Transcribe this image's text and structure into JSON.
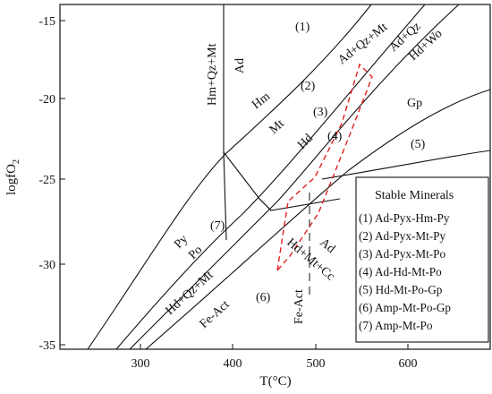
{
  "axes": {
    "x_ticks": [
      "300",
      "400",
      "500",
      "600"
    ],
    "y_ticks": [
      "-15",
      "-20",
      "-25",
      "-30",
      "-35"
    ],
    "xlabel": "T(°C)",
    "ylabel": {
      "base": "logfO",
      "subscript": "2"
    }
  },
  "field_labels": {
    "hm_qz_mt": "Hm+Qz+Mt",
    "ad_top": "Ad",
    "hm": "Hm",
    "mt": "Mt",
    "hd": "Hd",
    "ad_qz_mt": "Ad+Qz+Mt",
    "ad_qz": "Ad+Qz",
    "hd_wo": "Hd+Wo",
    "gp": "Gp",
    "py": "Py",
    "po": "Po",
    "hd_qz_mt": "Hd+Qz+Mt",
    "fe_act_left": "Fe-Act",
    "fe_act_mid": "Fe-Act",
    "ad_low": "Ad",
    "hd_mt_cc": "Hd+Mt+Cc"
  },
  "region_labels": [
    "(1)",
    "(2)",
    "(3)",
    "(4)",
    "(5)",
    "(6)",
    "(7)"
  ],
  "legend": {
    "title": "Stable Minerals",
    "items": [
      "(1) Ad-Pyx-Hm-Py",
      "(2) Ad-Pyx-Mt-Py",
      "(3) Ad-Pyx-Mt-Po",
      "(4) Ad-Hd-Mt-Po",
      "(5) Hd-Mt-Po-Gp",
      "(6) Amp-Mt-Po-Gp",
      "(7) Amp-Mt-Po"
    ]
  },
  "colors": {
    "lines": "#111111",
    "highlight_box": "#e02020"
  }
}
